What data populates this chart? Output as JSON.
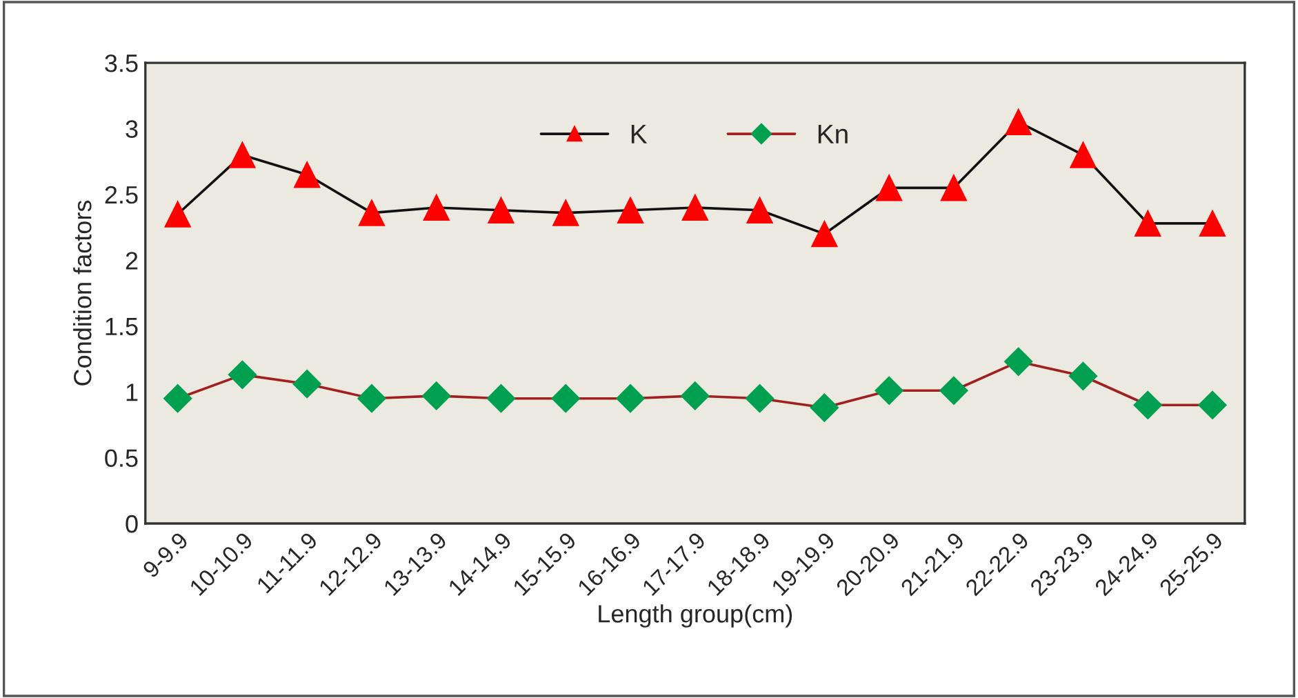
{
  "chart_data": {
    "type": "line",
    "xlabel": "Length group(cm)",
    "ylabel": "Condition factors",
    "categories": [
      "9-9.9",
      "10-10.9",
      "11-11.9",
      "12-12.9",
      "13-13.9",
      "14-14.9",
      "15-15.9",
      "16-16.9",
      "17-17.9",
      "18-18.9",
      "19-19.9",
      "20-20.9",
      "21-21.9",
      "22-22.9",
      "23-23.9",
      "24-24.9",
      "25-25.9"
    ],
    "series": [
      {
        "name": "K",
        "color": "#ff0000",
        "marker": "triangle",
        "values": [
          2.35,
          2.8,
          2.65,
          2.36,
          2.4,
          2.38,
          2.36,
          2.38,
          2.4,
          2.38,
          2.2,
          2.55,
          2.55,
          3.05,
          2.8,
          2.28,
          2.28
        ]
      },
      {
        "name": "Kn",
        "color": "#00a050",
        "marker": "diamond",
        "values": [
          0.95,
          1.13,
          1.06,
          0.95,
          0.97,
          0.95,
          0.95,
          0.95,
          0.97,
          0.95,
          0.88,
          1.01,
          1.01,
          1.23,
          1.12,
          0.9,
          0.9
        ]
      }
    ],
    "ylim": [
      0,
      3.5
    ],
    "yticks": [
      0,
      0.5,
      1,
      1.5,
      2,
      2.5,
      3,
      3.5
    ],
    "grid": false,
    "legend": "top",
    "line_style": "solid"
  }
}
